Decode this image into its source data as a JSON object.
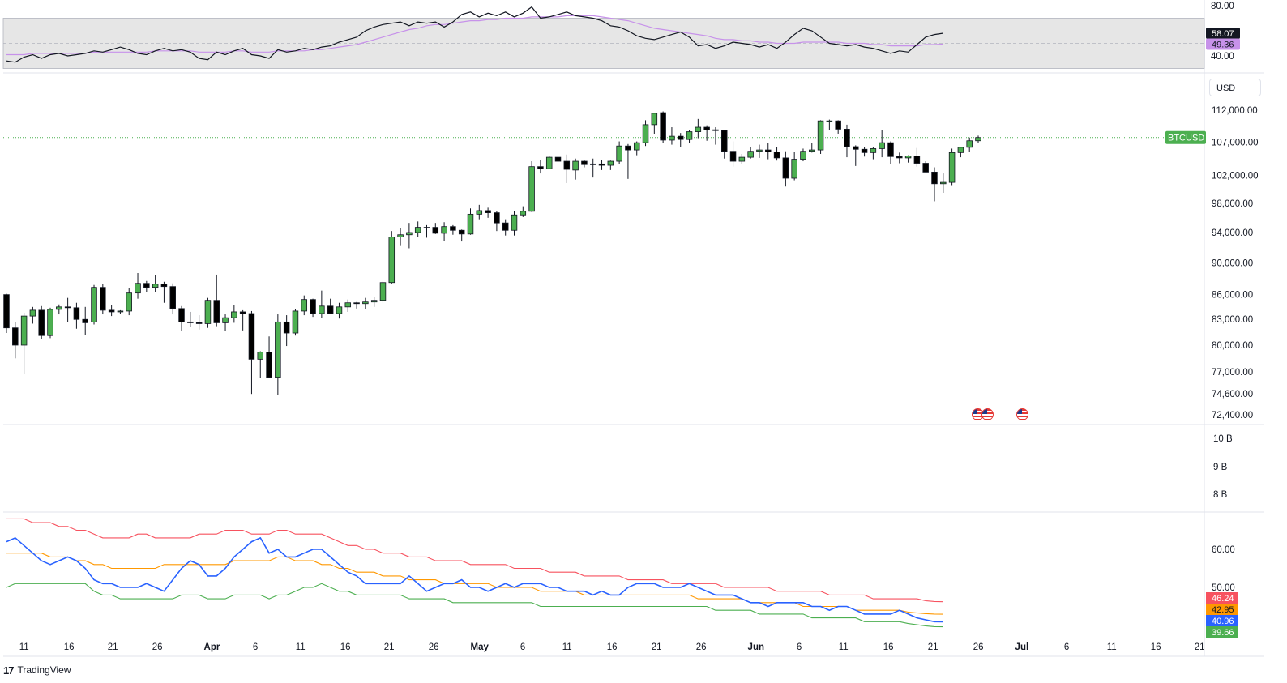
{
  "window": {
    "brand": "TradingView"
  },
  "price_pane": {
    "unit_label": "USD",
    "symbol_tag": "BTCUSD",
    "symbol_color": "#4caf50"
  },
  "colors": {
    "up": "#4caf50",
    "down": "#000000",
    "rsi_line": "#131722",
    "rsi_ma": "#c792ea",
    "rsi_band_fill": "#e6e6e6",
    "bb_upper": "#f7525f",
    "bb_mid": "#ff9800",
    "bb_lower": "#4caf50",
    "bb_line": "#2962ff"
  },
  "rsi_pane": {
    "axis_labels": [
      "80.00",
      "40.00"
    ],
    "rsi_tag": "58.07",
    "ma_tag": "49.36"
  },
  "volume_pane": {
    "axis_labels": [
      "10 B",
      "9 B",
      "8 B"
    ]
  },
  "lower_pane": {
    "axis_labels": [
      "60.00",
      "50.00"
    ],
    "tags": [
      "46.24",
      "42.95",
      "40.96",
      "39.66"
    ]
  },
  "x_axis": {
    "labels": [
      "11",
      "16",
      "21",
      "26",
      "Apr",
      "6",
      "11",
      "16",
      "21",
      "26",
      "May",
      "6",
      "11",
      "16",
      "21",
      "26",
      "Jun",
      "6",
      "11",
      "16",
      "21",
      "26",
      "Jul",
      "6",
      "11",
      "16",
      "21"
    ]
  },
  "chart_data": {
    "type": "candlestick",
    "symbol": "BTCUSD",
    "currency": "USD",
    "y_tick_labels": [
      "112,000.00",
      "107,000.00",
      "102,000.00",
      "98,000.00",
      "94,000.00",
      "90,000.00",
      "86,000.00",
      "83,000.00",
      "80,000.00",
      "77,000.00",
      "74,600.00",
      "72,400.00"
    ],
    "y_log_scale": true,
    "ylim": [
      72000,
      116000
    ],
    "last_price": 107700,
    "candles": [
      [
        86000,
        86100,
        81400,
        82000
      ],
      [
        82000,
        82700,
        78500,
        80000
      ],
      [
        80000,
        83800,
        76800,
        83400
      ],
      [
        83400,
        84500,
        82500,
        84100
      ],
      [
        84100,
        84600,
        80700,
        81100
      ],
      [
        81100,
        84400,
        80800,
        84200
      ],
      [
        84200,
        84800,
        83600,
        84500
      ],
      [
        84500,
        85600,
        82700,
        84400
      ],
      [
        84400,
        85000,
        81900,
        83000
      ],
      [
        83000,
        84500,
        81200,
        82600
      ],
      [
        82700,
        87200,
        82400,
        86900
      ],
      [
        86900,
        87300,
        83600,
        84100
      ],
      [
        84100,
        84700,
        83400,
        83900
      ],
      [
        83900,
        84100,
        83700,
        84000
      ],
      [
        84000,
        86800,
        83500,
        86200
      ],
      [
        86200,
        88700,
        85500,
        87400
      ],
      [
        87400,
        87700,
        86300,
        86900
      ],
      [
        86900,
        88400,
        86300,
        87300
      ],
      [
        87300,
        87600,
        85000,
        87000
      ],
      [
        87000,
        87400,
        83600,
        84300
      ],
      [
        84300,
        84600,
        81600,
        82700
      ],
      [
        82700,
        83900,
        82100,
        82600
      ],
      [
        82600,
        83500,
        81800,
        82500
      ],
      [
        82500,
        85600,
        82000,
        85300
      ],
      [
        85300,
        88500,
        82200,
        82600
      ],
      [
        82600,
        83600,
        81600,
        83200
      ],
      [
        83200,
        84700,
        82600,
        83900
      ],
      [
        83900,
        84100,
        81700,
        83700
      ],
      [
        83700,
        84000,
        74600,
        78400
      ],
      [
        78400,
        79300,
        76300,
        79200
      ],
      [
        79200,
        81000,
        76300,
        76400
      ],
      [
        76400,
        83600,
        74500,
        82700
      ],
      [
        82700,
        83500,
        79900,
        81400
      ],
      [
        81400,
        84200,
        81100,
        84000
      ],
      [
        84000,
        85900,
        83500,
        85400
      ],
      [
        85400,
        85500,
        83300,
        83700
      ],
      [
        83700,
        86500,
        83200,
        84600
      ],
      [
        84600,
        85500,
        83900,
        83700
      ],
      [
        83700,
        85000,
        83100,
        84500
      ],
      [
        84500,
        85400,
        83900,
        85000
      ],
      [
        85000,
        85100,
        84300,
        84900
      ],
      [
        84900,
        85600,
        84200,
        85100
      ],
      [
        85100,
        85700,
        84500,
        85300
      ],
      [
        85300,
        87700,
        85000,
        87500
      ],
      [
        87500,
        94200,
        87300,
        93400
      ],
      [
        93400,
        94600,
        92200,
        93700
      ],
      [
        93700,
        95300,
        91900,
        94000
      ],
      [
        94000,
        95500,
        93400,
        94700
      ],
      [
        94700,
        95000,
        93300,
        94700
      ],
      [
        94700,
        95300,
        93800,
        93900
      ],
      [
        93900,
        95400,
        92900,
        94800
      ],
      [
        94800,
        95000,
        93700,
        94300
      ],
      [
        94300,
        94400,
        92800,
        93800
      ],
      [
        93800,
        97300,
        93700,
        96500
      ],
      [
        96500,
        97800,
        95800,
        97000
      ],
      [
        97000,
        97400,
        96000,
        96700
      ],
      [
        96700,
        96900,
        94200,
        95300
      ],
      [
        95300,
        95800,
        93600,
        94300
      ],
      [
        94300,
        96900,
        93600,
        96400
      ],
      [
        96400,
        97600,
        96100,
        96900
      ],
      [
        96900,
        104100,
        96800,
        103300
      ],
      [
        103300,
        104300,
        102300,
        103000
      ],
      [
        103000,
        104900,
        102900,
        104700
      ],
      [
        104700,
        105700,
        103700,
        104100
      ],
      [
        104100,
        105100,
        100900,
        102900
      ],
      [
        102800,
        104500,
        101400,
        104100
      ],
      [
        104100,
        104300,
        103200,
        103600
      ],
      [
        103600,
        104500,
        101700,
        103700
      ],
      [
        103700,
        104300,
        102800,
        103500
      ],
      [
        103500,
        104200,
        102800,
        104100
      ],
      [
        104100,
        107100,
        103700,
        106400
      ],
      [
        106400,
        106700,
        101500,
        105800
      ],
      [
        105800,
        107100,
        105000,
        106900
      ],
      [
        106900,
        110400,
        106400,
        109700
      ],
      [
        109700,
        111500,
        108200,
        111500
      ],
      [
        111600,
        111800,
        106800,
        107300
      ],
      [
        107300,
        109300,
        106600,
        107900
      ],
      [
        107900,
        108400,
        106300,
        107400
      ],
      [
        107400,
        108900,
        106800,
        108600
      ],
      [
        108600,
        110600,
        107600,
        109300
      ],
      [
        109300,
        109600,
        107200,
        108900
      ],
      [
        108900,
        109300,
        106600,
        108800
      ],
      [
        108800,
        108900,
        104500,
        105600
      ],
      [
        105600,
        107100,
        103300,
        104100
      ],
      [
        104100,
        105200,
        103700,
        104700
      ],
      [
        104700,
        106200,
        104500,
        105600
      ],
      [
        105600,
        106600,
        104600,
        105800
      ],
      [
        105800,
        106900,
        104400,
        105500
      ],
      [
        105500,
        106300,
        104200,
        104600
      ],
      [
        104600,
        105600,
        100400,
        101600
      ],
      [
        101600,
        105500,
        101300,
        104400
      ],
      [
        104400,
        106000,
        104100,
        105600
      ],
      [
        105600,
        106900,
        105400,
        105800
      ],
      [
        105800,
        110400,
        105200,
        110300
      ],
      [
        110300,
        110500,
        108800,
        110300
      ],
      [
        110300,
        110400,
        108300,
        109000
      ],
      [
        109000,
        109700,
        104700,
        106300
      ],
      [
        106300,
        106500,
        103400,
        105900
      ],
      [
        105900,
        106300,
        104800,
        105400
      ],
      [
        105400,
        106200,
        104400,
        106000
      ],
      [
        106000,
        108800,
        104700,
        106900
      ],
      [
        106900,
        107100,
        103700,
        104800
      ],
      [
        104800,
        105400,
        103800,
        104600
      ],
      [
        104600,
        105000,
        103900,
        104900
      ],
      [
        104900,
        106100,
        103300,
        103800
      ],
      [
        103800,
        104100,
        102800,
        102500
      ],
      [
        102500,
        103200,
        98300,
        100800
      ],
      [
        100800,
        102300,
        99500,
        101000
      ],
      [
        101000,
        106000,
        100600,
        105400
      ],
      [
        105400,
        106200,
        104700,
        106200
      ],
      [
        106200,
        107700,
        105500,
        107200
      ],
      [
        107200,
        108000,
        106800,
        107700
      ]
    ],
    "rsi": [
      36,
      35,
      39,
      41,
      38,
      41,
      42,
      40,
      41,
      42,
      44,
      43,
      45,
      47,
      45,
      42,
      41,
      44,
      46,
      44,
      45,
      43,
      38,
      37,
      43,
      41,
      44,
      46,
      41,
      40,
      38,
      45,
      43,
      44,
      46,
      45,
      47,
      48,
      51,
      53,
      55,
      60,
      63,
      65,
      66,
      67,
      64,
      67,
      66,
      67,
      63,
      67,
      73,
      75,
      71,
      74,
      72,
      75,
      71,
      74,
      79,
      70,
      71,
      73,
      75,
      72,
      71,
      70,
      68,
      64,
      63,
      60,
      56,
      54,
      53,
      55,
      57,
      59,
      55,
      48,
      49,
      46,
      48,
      51,
      50,
      49,
      47,
      49,
      46,
      51,
      57,
      62,
      60,
      55,
      50,
      49,
      48,
      49,
      47,
      46,
      44,
      42,
      44,
      43,
      49,
      55,
      57,
      58.07
    ],
    "rsi_ma": [
      41,
      41,
      41,
      42,
      42,
      42,
      42,
      42,
      42,
      42,
      43,
      43,
      43,
      43,
      43,
      43,
      43,
      44,
      44,
      44,
      44,
      44,
      43,
      43,
      43,
      43,
      44,
      44,
      43,
      43,
      43,
      44,
      44,
      44,
      44,
      45,
      45,
      46,
      47,
      48,
      49,
      51,
      53,
      55,
      57,
      59,
      61,
      62,
      64,
      65,
      65,
      66,
      67,
      68,
      68,
      69,
      69,
      70,
      70,
      70,
      71,
      71,
      71,
      71,
      72,
      72,
      72,
      72,
      71,
      70,
      69,
      68,
      66,
      64,
      62,
      61,
      60,
      59,
      58,
      57,
      56,
      54,
      53,
      53,
      52,
      52,
      51,
      51,
      50,
      50,
      50,
      51,
      51,
      51,
      51,
      51,
      50,
      50,
      50,
      49,
      49,
      48,
      48,
      48,
      48,
      49,
      49,
      49.36
    ],
    "bb_upper": [
      68,
      68,
      68,
      67,
      67,
      67,
      66,
      66,
      65,
      65,
      64,
      63,
      63,
      63,
      63,
      64,
      64,
      63,
      63,
      63,
      63,
      63,
      64,
      64,
      64,
      65,
      65,
      65,
      64,
      64,
      64,
      65,
      65,
      64,
      64,
      64,
      64,
      63,
      62,
      61,
      61,
      60,
      60,
      59,
      59,
      59,
      58,
      58,
      58,
      57,
      57,
      57,
      57,
      56,
      56,
      56,
      56,
      56,
      55,
      55,
      55,
      55,
      54,
      54,
      54,
      54,
      53,
      53,
      53,
      53,
      53,
      52,
      52,
      52,
      52,
      52,
      51,
      51,
      51,
      51,
      51,
      51,
      50,
      50,
      50,
      50,
      50,
      50,
      49,
      49,
      49,
      49,
      49,
      49,
      48,
      48,
      48,
      48,
      48,
      47,
      47,
      47,
      47,
      47,
      47,
      46.5,
      46.3,
      46.24
    ],
    "bb_mid": [
      59,
      59,
      59,
      59,
      59,
      58,
      58,
      58,
      57,
      57,
      56,
      56,
      55,
      55,
      55,
      55,
      55,
      55,
      56,
      56,
      56,
      56,
      56,
      56,
      56,
      56,
      57,
      57,
      57,
      57,
      57,
      58,
      58,
      57,
      57,
      57,
      56,
      56,
      55,
      55,
      54,
      54,
      54,
      53,
      53,
      53,
      52,
      52,
      52,
      52,
      51,
      51,
      51,
      51,
      51,
      51,
      50,
      50,
      50,
      50,
      50,
      49,
      49,
      49,
      49,
      49,
      48,
      48,
      48,
      48,
      48,
      48,
      48,
      48,
      48,
      48,
      48,
      48,
      48,
      47,
      47,
      47,
      47,
      47,
      47,
      46,
      46,
      46,
      46,
      46,
      46,
      45,
      45,
      45,
      45,
      45,
      45,
      44,
      44,
      44,
      44,
      44,
      44,
      43.5,
      43.3,
      43.1,
      43.0,
      42.95
    ],
    "bb_line": [
      62,
      63,
      61,
      59,
      57,
      56,
      57,
      58,
      57,
      55,
      52,
      51,
      51,
      50,
      50,
      50,
      51,
      50,
      49,
      52,
      55,
      57,
      56,
      53,
      53,
      55,
      58,
      60,
      62,
      63,
      59,
      60,
      58,
      58,
      59,
      60,
      60,
      58,
      56,
      54,
      53,
      51,
      51,
      51,
      51,
      51,
      53,
      51,
      49,
      50,
      51,
      51,
      52,
      50,
      50,
      49,
      50,
      51,
      50,
      51,
      51,
      51,
      50,
      50,
      49,
      49,
      49,
      48,
      49,
      48,
      48,
      50,
      51,
      51,
      51,
      50,
      50,
      50,
      51,
      50,
      49,
      48,
      48,
      48,
      47,
      46,
      46,
      45,
      46,
      46,
      46,
      46,
      45,
      45,
      44,
      45,
      45,
      44,
      43,
      43,
      43,
      43,
      44,
      43,
      42,
      41.5,
      41,
      40.96
    ],
    "bb_lower": [
      50,
      51,
      51,
      51,
      51,
      51,
      51,
      51,
      51,
      51,
      49,
      48,
      48,
      47,
      47,
      47,
      47,
      47,
      47,
      47,
      48,
      48,
      48,
      47,
      47,
      47,
      48,
      48,
      48,
      48,
      47,
      48,
      48,
      49,
      50,
      50,
      51,
      50,
      49,
      49,
      48,
      48,
      48,
      48,
      48,
      48,
      47,
      47,
      47,
      47,
      47,
      46,
      46,
      46,
      46,
      46,
      46,
      46,
      46,
      46,
      46,
      45,
      45,
      45,
      45,
      45,
      45,
      45,
      45,
      45,
      45,
      45,
      45,
      45,
      45,
      45,
      45,
      45,
      45,
      45,
      45,
      44,
      44,
      44,
      44,
      44,
      43,
      43,
      43,
      43,
      43,
      43,
      42,
      42,
      42,
      42,
      42,
      42,
      41,
      41,
      41,
      41,
      41,
      40.5,
      40.2,
      39.9,
      39.7,
      39.66
    ]
  }
}
